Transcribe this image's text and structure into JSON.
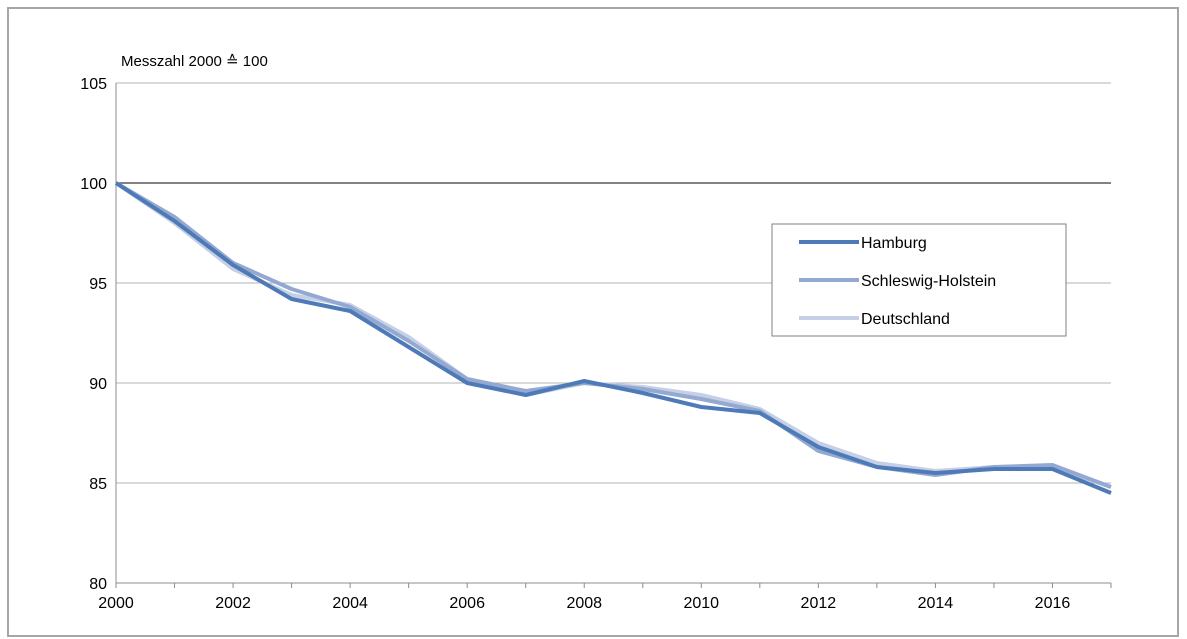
{
  "chart_data": {
    "type": "line",
    "title": "",
    "ylabel": "Messzahl 2000 ≙ 100",
    "xlabel": "",
    "x": [
      2000,
      2001,
      2002,
      2003,
      2004,
      2005,
      2006,
      2007,
      2008,
      2009,
      2010,
      2011,
      2012,
      2013,
      2014,
      2015,
      2016,
      2017
    ],
    "x_tick_labels": [
      "2000",
      "2002",
      "2004",
      "2006",
      "2008",
      "2010",
      "2012",
      "2014",
      "2016"
    ],
    "y_tick_labels": [
      "80",
      "85",
      "90",
      "95",
      "100",
      "105"
    ],
    "xlim": [
      2000,
      2017
    ],
    "ylim": [
      80,
      105
    ],
    "y_ticks": [
      80,
      85,
      90,
      95,
      100,
      105
    ],
    "grid": true,
    "legend_position": "right",
    "series": [
      {
        "name": "Hamburg",
        "color": "#4f7ab8",
        "values": [
          100,
          98.1,
          95.9,
          94.2,
          93.6,
          91.8,
          90.0,
          89.4,
          90.1,
          89.5,
          88.8,
          88.5,
          86.8,
          85.8,
          85.5,
          85.7,
          85.7,
          84.5
        ]
      },
      {
        "name": "Schleswig-Holstein",
        "color": "#93a9d2",
        "values": [
          100,
          98.3,
          96.0,
          94.7,
          93.8,
          92.1,
          90.2,
          89.6,
          90.0,
          89.7,
          89.2,
          88.6,
          86.6,
          85.8,
          85.4,
          85.8,
          85.9,
          84.8
        ]
      },
      {
        "name": "Deutschland",
        "color": "#c5d0e6",
        "values": [
          100,
          98.0,
          95.7,
          94.4,
          93.9,
          92.3,
          90.2,
          89.4,
          90.0,
          89.8,
          89.4,
          88.7,
          87.0,
          86.0,
          85.6,
          85.8,
          85.8,
          84.8
        ]
      }
    ]
  }
}
